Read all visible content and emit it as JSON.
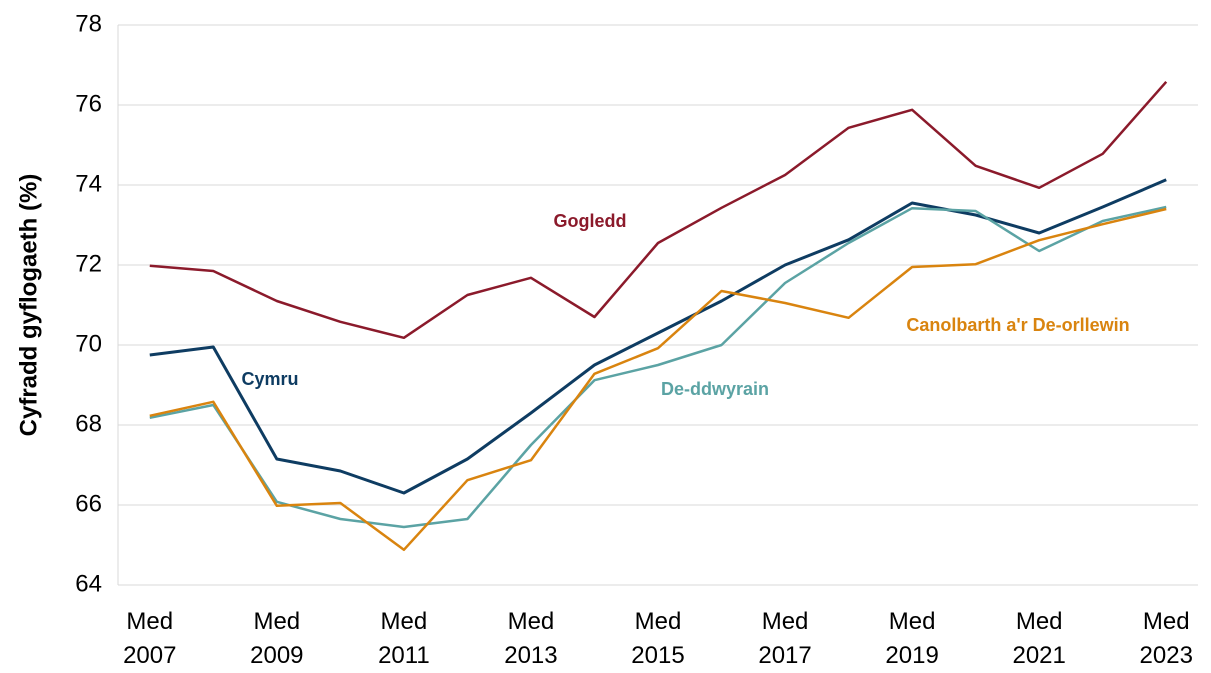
{
  "chart_data": {
    "type": "line",
    "ylabel": "Cyfradd gyflogaeth (%)",
    "categories": [
      "Med 2007",
      null,
      "Med 2009",
      null,
      "Med 2011",
      null,
      "Med 2013",
      null,
      "Med 2015",
      null,
      "Med 2017",
      null,
      "Med 2019",
      null,
      "Med 2021",
      null,
      "Med 2023"
    ],
    "series": [
      {
        "name": "Gogledd",
        "color": "#8b1a2b",
        "values": [
          71.98,
          71.85,
          71.1,
          70.58,
          70.18,
          71.25,
          71.68,
          70.7,
          72.55,
          73.43,
          74.25,
          75.43,
          75.88,
          74.48,
          73.93,
          74.78,
          76.58
        ]
      },
      {
        "name": "Cymru",
        "color": "#0e3c62",
        "values": [
          69.75,
          69.95,
          67.15,
          66.85,
          66.3,
          67.15,
          68.3,
          69.5,
          70.3,
          71.1,
          72.0,
          72.63,
          73.55,
          73.25,
          72.8,
          73.45,
          74.13
        ]
      },
      {
        "name": "De-ddwyrain",
        "color": "#5ba3a4",
        "values": [
          68.18,
          68.5,
          66.08,
          65.65,
          65.45,
          65.65,
          67.5,
          69.12,
          69.5,
          70.0,
          71.55,
          72.55,
          73.42,
          73.35,
          72.35,
          73.1,
          73.45
        ]
      },
      {
        "name": "Canolbarth a'r De-orllewin",
        "color": "#d9840f",
        "values": [
          68.23,
          68.58,
          65.98,
          66.05,
          64.88,
          66.62,
          67.12,
          69.28,
          69.92,
          71.35,
          71.05,
          70.68,
          71.95,
          72.02,
          72.62,
          73.02,
          73.4
        ]
      }
    ],
    "ylim": [
      64,
      78
    ],
    "yticks": [
      64,
      66,
      68,
      70,
      72,
      74,
      76,
      78
    ],
    "grid": true
  }
}
